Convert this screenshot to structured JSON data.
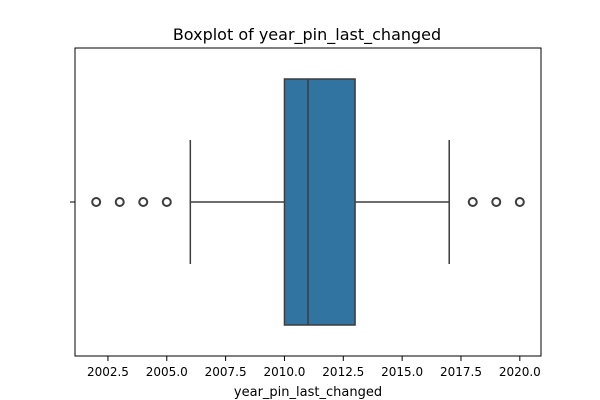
{
  "chart_data": {
    "type": "box",
    "title": "Boxplot of year_pin_last_changed",
    "xlabel": "year_pin_last_changed",
    "ylabel": "",
    "orientation": "horizontal",
    "xlim": [
      2001.1,
      2020.9
    ],
    "xticks": [
      2002.5,
      2005.0,
      2007.5,
      2010.0,
      2012.5,
      2015.0,
      2017.5,
      2020.0
    ],
    "xtick_labels": [
      "2002.5",
      "2005.0",
      "2007.5",
      "2010.0",
      "2012.5",
      "2015.0",
      "2017.5",
      "2020.0"
    ],
    "grid": false,
    "box": {
      "whisker_low": 2006,
      "q1": 2010,
      "median": 2011,
      "q3": 2013,
      "whisker_high": 2017,
      "outliers": [
        2002,
        2003,
        2004,
        2005,
        2018,
        2019,
        2020
      ]
    },
    "colors": {
      "box_fill": "#3274a1",
      "box_edge": "#3d3d3d",
      "whisker": "#3d3d3d",
      "outlier_edge": "#3d3d3d"
    }
  }
}
